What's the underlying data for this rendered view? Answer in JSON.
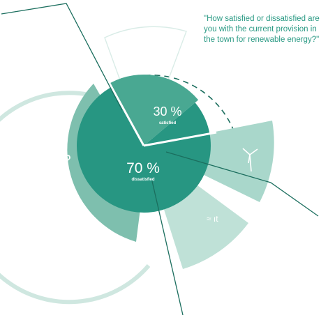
{
  "question": "\"How satisfied or dissatisfied are you with the current provision in the town for renewable energy?\"",
  "chart_data": {
    "type": "pie",
    "categories": [
      "satisfied",
      "dissatisfied"
    ],
    "values": [
      30,
      70
    ],
    "value_labels": [
      "30 %",
      "70 %"
    ],
    "colors": {
      "satisfied": "#49a892",
      "dissatisfied": "#279682",
      "outer_ring_light": "#a9d7cb",
      "outer_ring_medium": "#7ebfae",
      "annotation_line": "#1b6e5e"
    },
    "inner_labels": {
      "question_mark": "?",
      "wind_icon": "wind-turbine-icon"
    }
  }
}
